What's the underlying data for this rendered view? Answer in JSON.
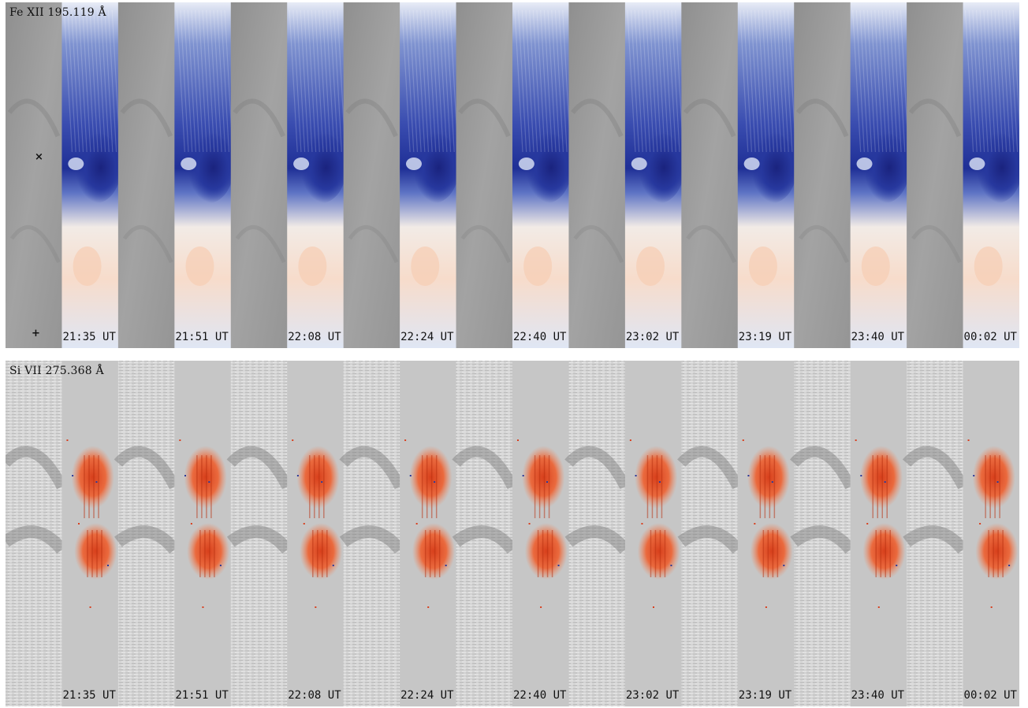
{
  "panels": [
    {
      "id": "top",
      "title": "Fe XII 195.119 Å",
      "times": [
        "21:35 UT",
        "21:51 UT",
        "22:08 UT",
        "22:24 UT",
        "22:40 UT",
        "23:02 UT",
        "23:19 UT",
        "23:40 UT",
        "00:02 UT"
      ],
      "style": "blue-doppler"
    },
    {
      "id": "bottom",
      "title": "Si VII 275.368 Å",
      "times": [
        "21:35 UT",
        "21:51 UT",
        "22:08 UT",
        "22:24 UT",
        "22:40 UT",
        "23:02 UT",
        "23:19 UT",
        "23:40 UT",
        "00:02 UT"
      ],
      "style": "red-doppler"
    }
  ],
  "markers": {
    "cross": "×",
    "plus": "+"
  },
  "colors": {
    "background": "#ffffff",
    "intensity_gray": "#9a9a9a",
    "blueshift": "#2a3a9a",
    "redshift": "#e8502a",
    "doppler_neutral": "#c8c8c8"
  }
}
